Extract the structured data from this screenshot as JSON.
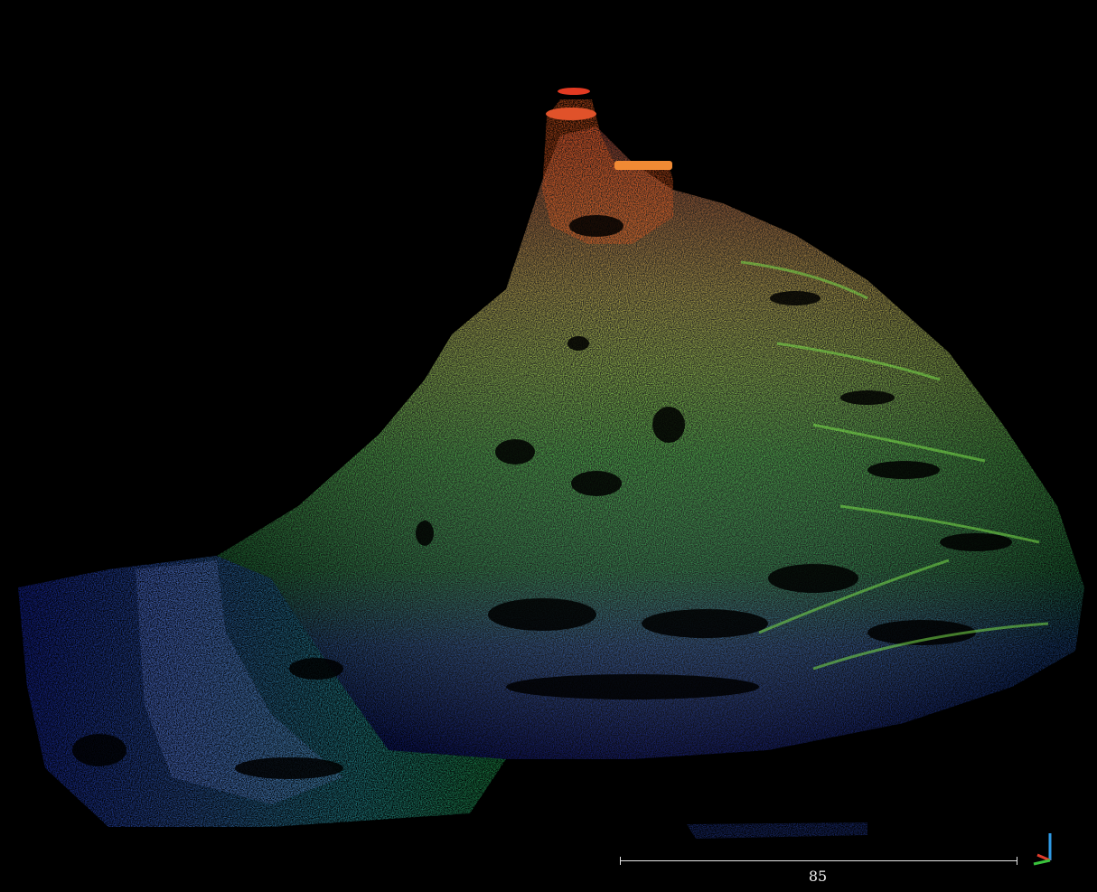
{
  "viewer": {
    "background_color": "#000000",
    "color_ramp": [
      "#1e2fd0",
      "#2f7fd6",
      "#27c25a",
      "#49e13a",
      "#b9e23a",
      "#e8c23a",
      "#e07a2a",
      "#d8321e"
    ],
    "scale_bar": {
      "label": "85"
    },
    "axis_gizmo": {
      "x_color": "#e23c2c",
      "y_color": "#39c23c",
      "z_color": "#2f9be8",
      "icon": "xyz-axes-icon"
    }
  }
}
